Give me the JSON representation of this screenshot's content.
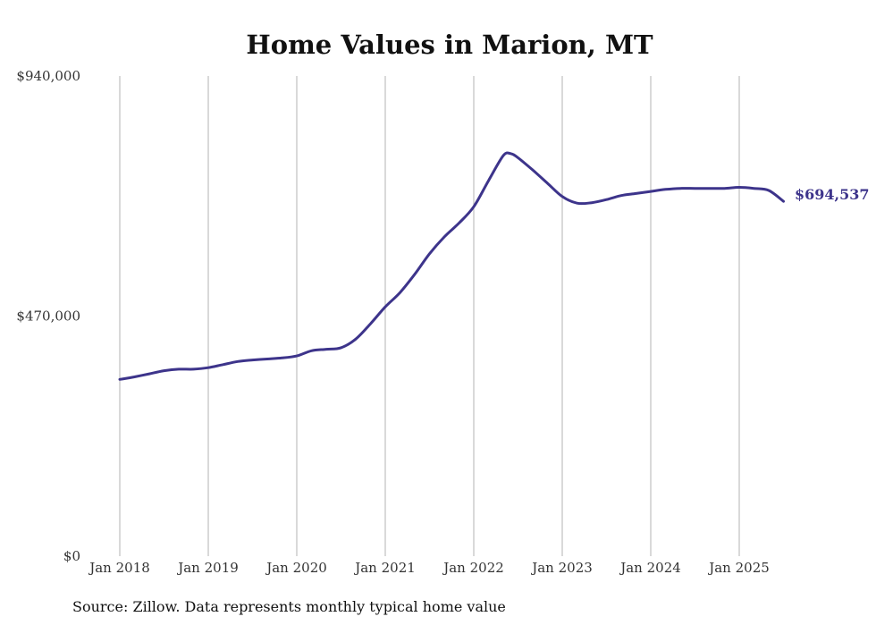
{
  "chart_data": {
    "type": "line",
    "title": "Home Values in Marion, MT",
    "xlabel": "",
    "ylabel": "",
    "source": "Source: Zillow. Data represents monthly typical home value",
    "ylim": [
      0,
      940000
    ],
    "y_ticks": [
      {
        "value": 0,
        "label": "$0"
      },
      {
        "value": 470000,
        "label": "$470,000"
      },
      {
        "value": 940000,
        "label": "$940,000"
      }
    ],
    "x_ticks": [
      "Jan 2018",
      "Jan 2019",
      "Jan 2020",
      "Jan 2021",
      "Jan 2022",
      "Jan 2023",
      "Jan 2024",
      "Jan 2025"
    ],
    "grid": "vertical",
    "end_label": "$694,537",
    "line_color": "#3d348b",
    "series": [
      {
        "x": [
          "2018-01",
          "2018-03",
          "2018-05",
          "2018-07",
          "2018-09",
          "2018-11",
          "2019-01",
          "2019-03",
          "2019-05",
          "2019-07",
          "2019-09",
          "2019-11",
          "2020-01",
          "2020-03",
          "2020-05",
          "2020-07",
          "2020-09",
          "2020-11",
          "2021-01",
          "2021-03",
          "2021-05",
          "2021-07",
          "2021-09",
          "2021-11",
          "2022-01",
          "2022-03",
          "2022-05",
          "2022-06",
          "2022-07",
          "2022-09",
          "2022-11",
          "2023-01",
          "2023-03",
          "2023-05",
          "2023-07",
          "2023-09",
          "2023-11",
          "2024-01",
          "2024-03",
          "2024-05",
          "2024-07",
          "2024-09",
          "2024-11",
          "2025-01",
          "2025-03",
          "2025-05",
          "2025-07"
        ],
        "values": [
          346000,
          351000,
          357000,
          363000,
          366000,
          366000,
          369000,
          375000,
          381000,
          384000,
          386000,
          388000,
          392000,
          402000,
          405000,
          408000,
          425000,
          455000,
          488000,
          516000,
          552000,
          592000,
          625000,
          652000,
          684000,
          735000,
          784000,
          788000,
          780000,
          756000,
          730000,
          704000,
          691000,
          692000,
          698000,
          706000,
          710000,
          714000,
          718000,
          720000,
          720000,
          720000,
          720000,
          722000,
          720000,
          716000,
          694537
        ]
      }
    ]
  }
}
